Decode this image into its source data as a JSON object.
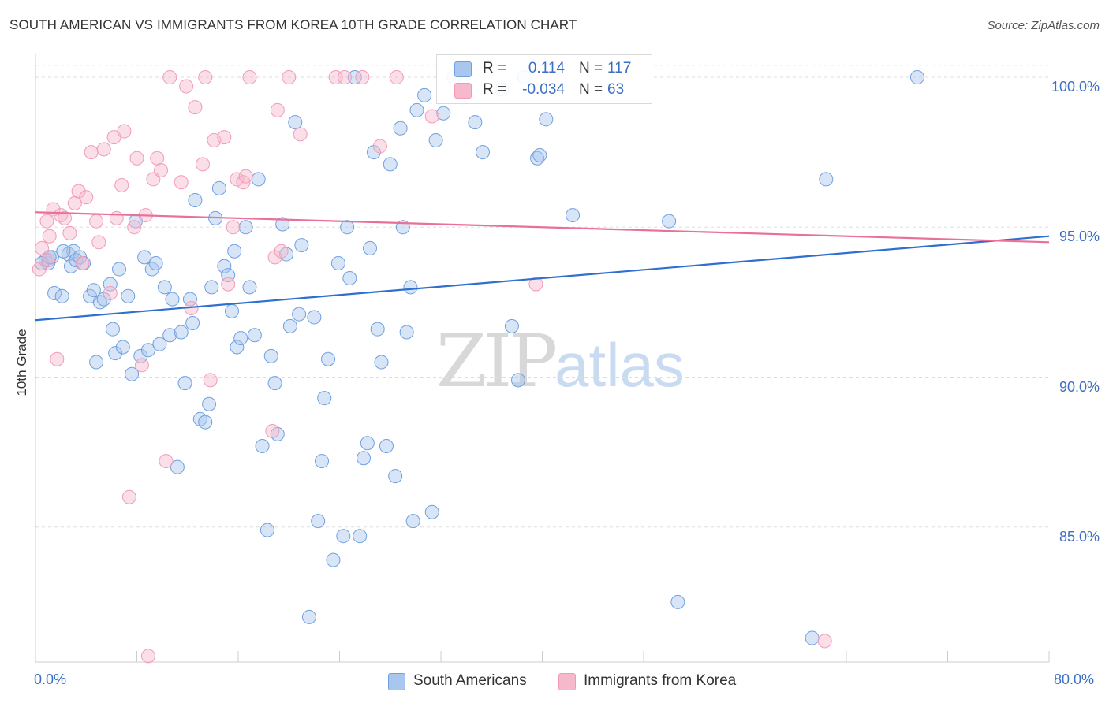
{
  "title": "SOUTH AMERICAN VS IMMIGRANTS FROM KOREA 10TH GRADE CORRELATION CHART",
  "source": "Source: ZipAtlas.com",
  "watermark": {
    "zip": "ZIP",
    "atlas": "atlas"
  },
  "legend": {
    "rows": [
      {
        "r_label": "R =",
        "r_value": "0.114",
        "n_label": "N =",
        "n_value": "117",
        "color": "#a9c6ee",
        "r_color": "#3a6fc4"
      },
      {
        "r_label": "R =",
        "r_value": "-0.034",
        "n_label": "N =",
        "n_value": "63",
        "color": "#f6b9cc",
        "r_color": "#3a6fc4"
      }
    ]
  },
  "bottom_legend": [
    {
      "label": "South Americans",
      "color": "#a9c6ee"
    },
    {
      "label": "Immigrants from Korea",
      "color": "#f6b9cc"
    }
  ],
  "chart_data": {
    "type": "scatter",
    "title": "SOUTH AMERICAN VS IMMIGRANTS FROM KOREA 10TH GRADE CORRELATION CHART",
    "xlabel": "",
    "ylabel": "10th Grade",
    "xlim": [
      0,
      80
    ],
    "ylim": [
      80.5,
      101.0
    ],
    "x_tick_labels": [
      "0.0%",
      "80.0%"
    ],
    "y_ticks": [
      85,
      90,
      95,
      100
    ],
    "y_tick_labels": [
      "85.0%",
      "90.0%",
      "95.0%",
      "100.0%"
    ],
    "grid": true,
    "legend_position": "top-center",
    "series": [
      {
        "name": "South Americans",
        "color": "#6fa0e0",
        "trend": {
          "x": [
            0,
            80
          ],
          "y": [
            91.9,
            94.7
          ]
        },
        "points": [
          [
            0.8,
            93.9
          ],
          [
            1.0,
            93.8
          ],
          [
            1.3,
            94.0
          ],
          [
            1.5,
            92.8
          ],
          [
            2.1,
            92.7
          ],
          [
            2.6,
            94.1
          ],
          [
            2.8,
            93.7
          ],
          [
            3.0,
            94.2
          ],
          [
            3.2,
            93.9
          ],
          [
            3.5,
            94.0
          ],
          [
            3.8,
            93.8
          ],
          [
            4.3,
            92.7
          ],
          [
            4.6,
            92.9
          ],
          [
            4.8,
            90.5
          ],
          [
            5.1,
            92.5
          ],
          [
            5.4,
            92.6
          ],
          [
            5.9,
            93.1
          ],
          [
            6.1,
            91.6
          ],
          [
            6.3,
            90.8
          ],
          [
            6.6,
            93.6
          ],
          [
            6.9,
            91.0
          ],
          [
            7.3,
            92.7
          ],
          [
            7.6,
            90.1
          ],
          [
            7.9,
            95.2
          ],
          [
            8.3,
            90.7
          ],
          [
            8.6,
            94.0
          ],
          [
            8.9,
            90.9
          ],
          [
            9.2,
            93.6
          ],
          [
            9.5,
            93.8
          ],
          [
            9.8,
            91.1
          ],
          [
            10.2,
            93.0
          ],
          [
            10.6,
            91.4
          ],
          [
            10.8,
            92.6
          ],
          [
            11.2,
            87.0
          ],
          [
            11.5,
            91.5
          ],
          [
            11.8,
            89.8
          ],
          [
            12.2,
            92.6
          ],
          [
            12.4,
            91.8
          ],
          [
            12.6,
            95.9
          ],
          [
            13.0,
            88.6
          ],
          [
            13.4,
            88.5
          ],
          [
            13.7,
            89.1
          ],
          [
            13.9,
            93.0
          ],
          [
            14.2,
            95.3
          ],
          [
            14.5,
            96.3
          ],
          [
            14.9,
            93.7
          ],
          [
            15.2,
            93.4
          ],
          [
            15.5,
            92.2
          ],
          [
            15.7,
            94.2
          ],
          [
            15.9,
            91.0
          ],
          [
            16.2,
            91.3
          ],
          [
            16.6,
            95.0
          ],
          [
            16.9,
            93.0
          ],
          [
            17.3,
            91.4
          ],
          [
            17.6,
            96.6
          ],
          [
            17.9,
            87.7
          ],
          [
            18.3,
            84.9
          ],
          [
            18.6,
            90.7
          ],
          [
            18.9,
            89.8
          ],
          [
            19.1,
            88.1
          ],
          [
            19.5,
            95.1
          ],
          [
            19.8,
            94.1
          ],
          [
            20.1,
            91.7
          ],
          [
            20.5,
            98.5
          ],
          [
            20.8,
            92.1
          ],
          [
            21.0,
            94.4
          ],
          [
            21.6,
            82.0
          ],
          [
            22.0,
            92.0
          ],
          [
            22.3,
            85.2
          ],
          [
            22.6,
            87.2
          ],
          [
            22.8,
            89.3
          ],
          [
            23.1,
            90.6
          ],
          [
            23.5,
            83.9
          ],
          [
            23.9,
            93.8
          ],
          [
            24.3,
            84.7
          ],
          [
            24.6,
            95.0
          ],
          [
            24.8,
            93.3
          ],
          [
            25.2,
            100.0
          ],
          [
            25.6,
            84.7
          ],
          [
            25.9,
            87.3
          ],
          [
            26.2,
            87.8
          ],
          [
            26.4,
            94.3
          ],
          [
            26.7,
            97.5
          ],
          [
            27.0,
            91.6
          ],
          [
            27.3,
            90.5
          ],
          [
            27.7,
            87.7
          ],
          [
            28.0,
            97.1
          ],
          [
            28.4,
            86.7
          ],
          [
            28.8,
            98.3
          ],
          [
            29.0,
            95.0
          ],
          [
            29.3,
            91.5
          ],
          [
            29.6,
            93.0
          ],
          [
            29.8,
            85.2
          ],
          [
            30.1,
            98.9
          ],
          [
            30.7,
            99.4
          ],
          [
            31.3,
            85.5
          ],
          [
            31.6,
            97.9
          ],
          [
            32.2,
            98.8
          ],
          [
            33.0,
            100.0
          ],
          [
            34.7,
            98.5
          ],
          [
            35.3,
            97.5
          ],
          [
            36.8,
            99.6
          ],
          [
            37.6,
            91.7
          ],
          [
            38.1,
            89.9
          ],
          [
            38.6,
            100.0
          ],
          [
            39.6,
            97.3
          ],
          [
            39.8,
            97.4
          ],
          [
            40.3,
            98.6
          ],
          [
            42.4,
            95.4
          ],
          [
            50.0,
            95.2
          ],
          [
            50.7,
            82.5
          ],
          [
            61.3,
            81.3
          ],
          [
            62.4,
            96.6
          ],
          [
            69.6,
            100.0
          ],
          [
            0.5,
            93.8
          ],
          [
            1.1,
            94.0
          ],
          [
            2.2,
            94.2
          ]
        ]
      },
      {
        "name": "Immigrants from Korea",
        "color": "#f29bb6",
        "trend": {
          "x": [
            0,
            80
          ],
          "y": [
            95.5,
            94.5
          ]
        },
        "points": [
          [
            0.3,
            93.6
          ],
          [
            0.5,
            94.3
          ],
          [
            0.9,
            95.2
          ],
          [
            1.1,
            94.7
          ],
          [
            1.4,
            95.6
          ],
          [
            1.7,
            90.6
          ],
          [
            2.0,
            95.4
          ],
          [
            2.3,
            95.3
          ],
          [
            2.7,
            94.8
          ],
          [
            3.1,
            95.8
          ],
          [
            3.4,
            96.2
          ],
          [
            3.7,
            93.8
          ],
          [
            4.0,
            96.0
          ],
          [
            4.4,
            97.5
          ],
          [
            4.8,
            95.2
          ],
          [
            5.0,
            94.5
          ],
          [
            5.4,
            97.6
          ],
          [
            5.9,
            92.8
          ],
          [
            6.2,
            98.0
          ],
          [
            6.4,
            95.3
          ],
          [
            6.8,
            96.4
          ],
          [
            7.0,
            98.2
          ],
          [
            7.4,
            86.0
          ],
          [
            7.8,
            95.0
          ],
          [
            8.0,
            97.3
          ],
          [
            8.4,
            90.4
          ],
          [
            8.7,
            95.4
          ],
          [
            8.9,
            80.7
          ],
          [
            9.3,
            96.6
          ],
          [
            9.6,
            97.3
          ],
          [
            9.9,
            96.9
          ],
          [
            10.3,
            87.2
          ],
          [
            10.6,
            100.0
          ],
          [
            11.5,
            96.5
          ],
          [
            11.9,
            99.7
          ],
          [
            12.3,
            92.3
          ],
          [
            12.6,
            99.0
          ],
          [
            13.2,
            97.1
          ],
          [
            13.4,
            100.0
          ],
          [
            13.8,
            89.9
          ],
          [
            14.1,
            97.9
          ],
          [
            14.9,
            98.0
          ],
          [
            15.2,
            93.1
          ],
          [
            15.6,
            95.0
          ],
          [
            15.9,
            96.6
          ],
          [
            16.4,
            96.5
          ],
          [
            16.6,
            96.7
          ],
          [
            16.9,
            100.0
          ],
          [
            18.7,
            88.2
          ],
          [
            18.9,
            94.0
          ],
          [
            19.1,
            98.9
          ],
          [
            19.4,
            94.2
          ],
          [
            20.0,
            100.0
          ],
          [
            20.9,
            98.1
          ],
          [
            23.7,
            100.0
          ],
          [
            24.4,
            100.0
          ],
          [
            25.8,
            100.0
          ],
          [
            27.2,
            97.7
          ],
          [
            28.5,
            100.0
          ],
          [
            31.3,
            98.7
          ],
          [
            39.5,
            93.1
          ],
          [
            62.3,
            81.2
          ],
          [
            1.0,
            93.9
          ]
        ]
      }
    ]
  }
}
